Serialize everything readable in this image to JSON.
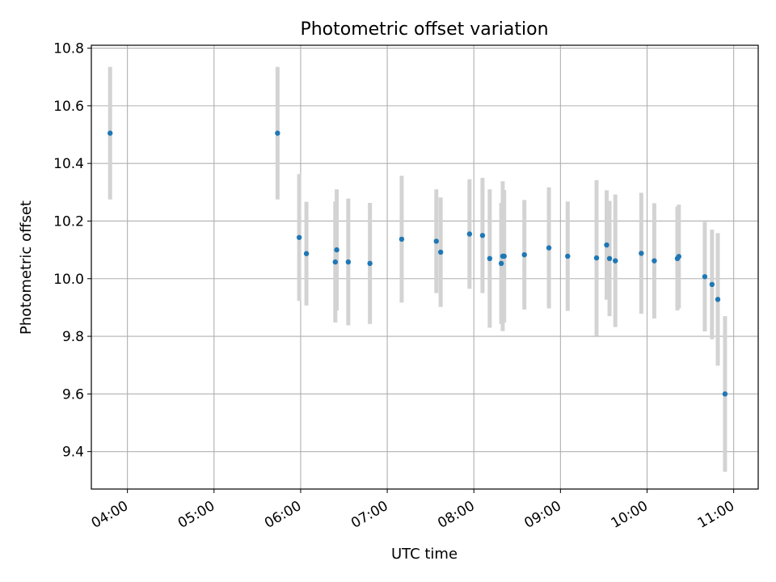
{
  "chart_data": {
    "type": "scatter",
    "title": "Photometric offset variation",
    "xlabel": "UTC time",
    "ylabel": "Photometric offset",
    "xlim": [
      "03:35",
      "11:17"
    ],
    "ylim": [
      9.27,
      10.81
    ],
    "x_ticks": [
      "04:00",
      "05:00",
      "06:00",
      "07:00",
      "08:00",
      "09:00",
      "10:00",
      "11:00"
    ],
    "y_ticks": [
      9.4,
      9.6,
      9.8,
      10.0,
      10.2,
      10.4,
      10.6,
      10.8
    ],
    "grid": true,
    "legend": "none",
    "colors": {
      "points": "#1f77b4",
      "errorbars": "#d3d3d3",
      "grid": "#b0b0b0"
    },
    "series": [
      {
        "points": [
          {
            "x": "03:48",
            "y": 10.505,
            "err": 0.23
          },
          {
            "x": "05:44",
            "y": 10.505,
            "err": 0.23
          },
          {
            "x": "05:59",
            "y": 10.143,
            "err": 0.22
          },
          {
            "x": "06:04",
            "y": 10.087,
            "err": 0.18
          },
          {
            "x": "06:24",
            "y": 10.058,
            "err": 0.21
          },
          {
            "x": "06:25",
            "y": 10.1,
            "err": 0.21
          },
          {
            "x": "06:33",
            "y": 10.058,
            "err": 0.22
          },
          {
            "x": "06:48",
            "y": 10.053,
            "err": 0.21
          },
          {
            "x": "07:10",
            "y": 10.137,
            "err": 0.22
          },
          {
            "x": "07:34",
            "y": 10.13,
            "err": 0.18
          },
          {
            "x": "07:37",
            "y": 10.092,
            "err": 0.19
          },
          {
            "x": "07:57",
            "y": 10.155,
            "err": 0.19
          },
          {
            "x": "08:06",
            "y": 10.15,
            "err": 0.2
          },
          {
            "x": "08:11",
            "y": 10.07,
            "err": 0.24
          },
          {
            "x": "08:19",
            "y": 10.053,
            "err": 0.21
          },
          {
            "x": "08:20",
            "y": 10.078,
            "err": 0.26
          },
          {
            "x": "08:21",
            "y": 10.078,
            "err": 0.23
          },
          {
            "x": "08:35",
            "y": 10.083,
            "err": 0.19
          },
          {
            "x": "08:52",
            "y": 10.107,
            "err": 0.21
          },
          {
            "x": "09:05",
            "y": 10.078,
            "err": 0.19
          },
          {
            "x": "09:25",
            "y": 10.072,
            "err": 0.27
          },
          {
            "x": "09:32",
            "y": 10.117,
            "err": 0.19
          },
          {
            "x": "09:34",
            "y": 10.07,
            "err": 0.2
          },
          {
            "x": "09:38",
            "y": 10.062,
            "err": 0.23
          },
          {
            "x": "09:56",
            "y": 10.088,
            "err": 0.21
          },
          {
            "x": "10:05",
            "y": 10.062,
            "err": 0.2
          },
          {
            "x": "10:21",
            "y": 10.07,
            "err": 0.18
          },
          {
            "x": "10:22",
            "y": 10.077,
            "err": 0.18
          },
          {
            "x": "10:40",
            "y": 10.007,
            "err": 0.19
          },
          {
            "x": "10:45",
            "y": 9.98,
            "err": 0.19
          },
          {
            "x": "10:49",
            "y": 9.928,
            "err": 0.23
          },
          {
            "x": "10:54",
            "y": 9.6,
            "err": 0.27
          }
        ]
      }
    ]
  }
}
